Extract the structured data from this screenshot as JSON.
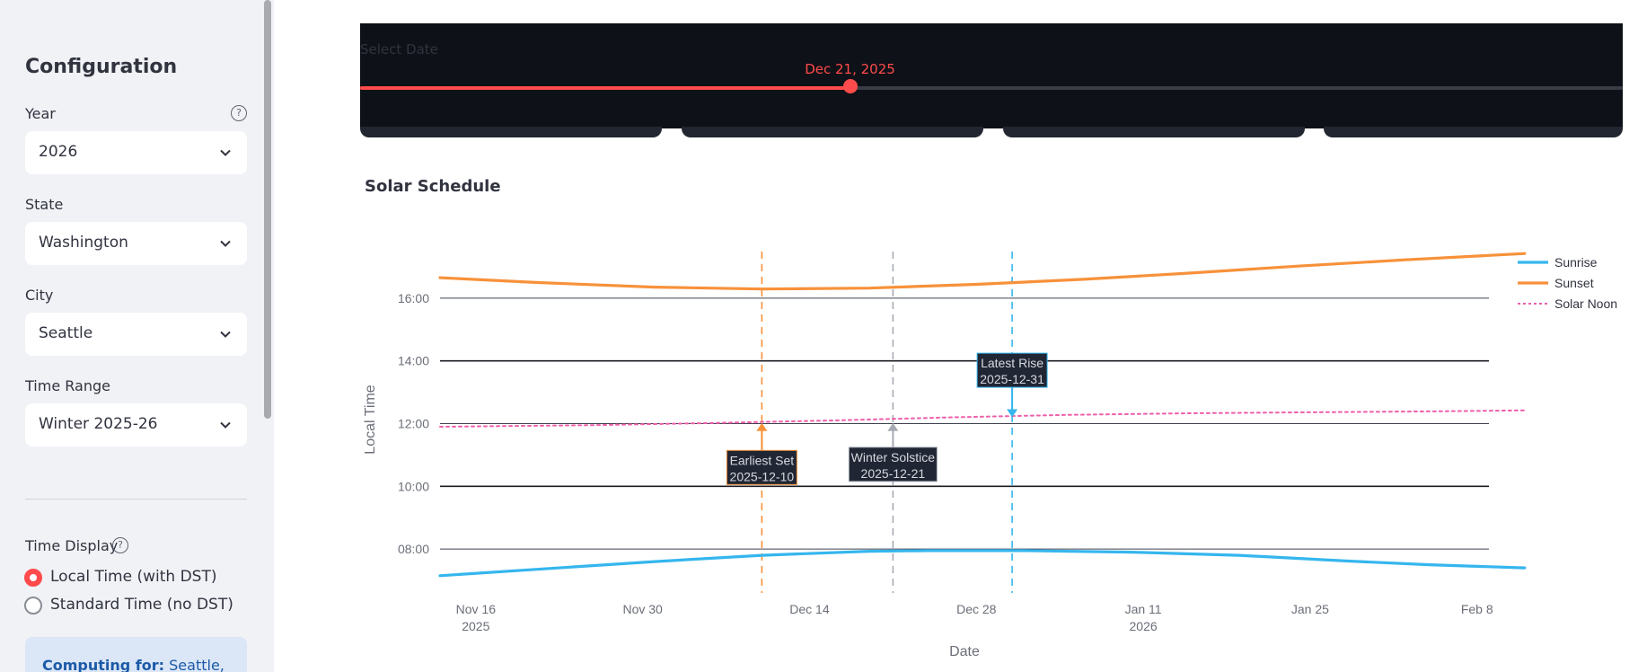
{
  "sidebar": {
    "title": "Configuration",
    "year": {
      "label": "Year",
      "value": "2026"
    },
    "state": {
      "label": "State",
      "value": "Washington"
    },
    "city": {
      "label": "City",
      "value": "Seattle"
    },
    "time_range": {
      "label": "Time Range",
      "value": "Winter 2025-26"
    },
    "time_display": {
      "label": "Time Display",
      "options": [
        {
          "label": "Local Time (with DST)",
          "selected": true
        },
        {
          "label": "Standard Time (no DST)",
          "selected": false
        }
      ]
    },
    "info": {
      "prefix": "Computing for:",
      "value": "Seattle,"
    }
  },
  "slider": {
    "label": "Select Date",
    "value_text": "Dec 21, 2025",
    "fraction": 0.388
  },
  "section": {
    "title": "Solar Schedule"
  },
  "colors": {
    "accent": "#ff4b4b",
    "sunrise": "#35b6ee",
    "sunset": "#f7913a",
    "noon": "#ee5faa",
    "solstice": "#a7abb4"
  },
  "chart_data": {
    "type": "line",
    "title": "Solar Schedule",
    "xlabel": "Date",
    "ylabel": "Local Time",
    "y_ticks": [
      "08:00",
      "10:00",
      "12:00",
      "14:00",
      "16:00"
    ],
    "ylim": [
      6.6,
      18.0
    ],
    "x_range_days": [
      -3,
      85
    ],
    "x_ticks": [
      {
        "day": 0,
        "label": "Nov 16",
        "sub": "2025"
      },
      {
        "day": 14,
        "label": "Nov 30",
        "sub": ""
      },
      {
        "day": 28,
        "label": "Dec 14",
        "sub": ""
      },
      {
        "day": 42,
        "label": "Dec 28",
        "sub": ""
      },
      {
        "day": 56,
        "label": "Jan 11",
        "sub": "2026"
      },
      {
        "day": 70,
        "label": "Jan 25",
        "sub": ""
      },
      {
        "day": 84,
        "label": "Feb 8",
        "sub": ""
      }
    ],
    "series": [
      {
        "name": "Sunrise",
        "color": "#35b6ee",
        "style": "solid",
        "days": [
          -3,
          5,
          15,
          24,
          33,
          38,
          46,
          55,
          64,
          73,
          80,
          88
        ],
        "values": [
          7.15,
          7.35,
          7.6,
          7.8,
          7.93,
          7.95,
          7.95,
          7.9,
          7.8,
          7.62,
          7.5,
          7.4
        ]
      },
      {
        "name": "Sunset",
        "color": "#f7913a",
        "style": "solid",
        "days": [
          -3,
          5,
          15,
          24,
          33,
          42,
          51,
          60,
          69,
          78,
          88
        ],
        "values": [
          16.65,
          16.5,
          16.35,
          16.29,
          16.32,
          16.44,
          16.6,
          16.8,
          17.02,
          17.22,
          17.42
        ]
      },
      {
        "name": "Solar Noon",
        "color": "#ee5faa",
        "style": "dotted",
        "days": [
          -3,
          10,
          20,
          30,
          40,
          50,
          60,
          70,
          80,
          88
        ],
        "values": [
          11.9,
          11.95,
          12.02,
          12.1,
          12.2,
          12.28,
          12.33,
          12.36,
          12.39,
          12.42
        ]
      }
    ],
    "markers": [
      {
        "day": 24,
        "color": "#f7913a",
        "label1": "Earliest Set",
        "label2": "2025-12-10",
        "y": 12.02,
        "box_y": 10.6,
        "dir": "up"
      },
      {
        "day": 35,
        "color": "#a7abb4",
        "label1": "Winter Solstice",
        "label2": "2025-12-21",
        "y": 12.02,
        "box_y": 10.7,
        "dir": "up"
      },
      {
        "day": 45,
        "color": "#35b6ee",
        "label1": "Latest Rise",
        "label2": "2025-12-31",
        "y": 12.2,
        "box_y": 13.7,
        "dir": "down"
      }
    ],
    "legend": [
      "Sunrise",
      "Sunset",
      "Solar Noon"
    ],
    "legend_position": "top-right",
    "grid": true
  }
}
